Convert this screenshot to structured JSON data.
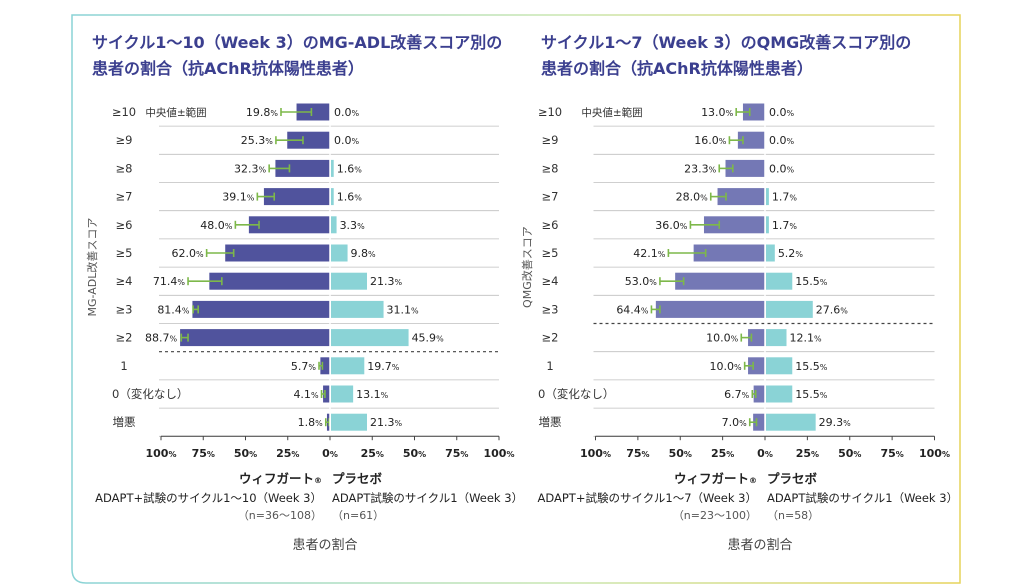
{
  "colors": {
    "treatment": "#50539d",
    "treatment_qmg": "#7478b5",
    "placebo": "#8ad3d6",
    "error_bar": "#7db84a",
    "title": "#3b3f8f",
    "text": "#333333",
    "border_left": "#8ad3d6",
    "border_right": "#e6d35a"
  },
  "chart_data": [
    {
      "type": "bar",
      "title_lines": [
        "サイクル1〜10（Week 3）のMG-ADL改善スコア別の",
        "患者の割合（抗AChR抗体陽性患者）"
      ],
      "ylabel": "MG-ADL改善スコア",
      "errorbar_legend": "中央値±範囲",
      "categories": [
        "≥10",
        "≥9",
        "≥8",
        "≥7",
        "≥6",
        "≥5",
        "≥4",
        "≥3",
        "≥2",
        "1",
        "0（変化なし）",
        "増悪"
      ],
      "dashed_after_index": 8,
      "series": [
        {
          "name": "ウィフガート®",
          "values": [
            19.8,
            25.3,
            32.3,
            39.1,
            48.0,
            62.0,
            71.4,
            81.4,
            88.7,
            5.7,
            4.1,
            1.8
          ],
          "labels": [
            "19.8%",
            "25.3%",
            "32.3%",
            "39.1%",
            "48.0%",
            "62.0%",
            "71.4%",
            "81.4%",
            "88.7%",
            "5.7%",
            "4.1%",
            "1.8%"
          ],
          "error_min": [
            11,
            16,
            24,
            33,
            42,
            57,
            64,
            78,
            84,
            4.5,
            3,
            0.5
          ],
          "error_max": [
            29,
            32,
            36,
            43,
            56,
            73,
            84,
            81,
            88,
            6.5,
            5,
            2.5
          ],
          "subtitle": "ADAPT+試験のサイクル1〜10（Week 3）",
          "n": "（n=36〜108）"
        },
        {
          "name": "プラセボ",
          "values": [
            0.0,
            0.0,
            1.6,
            1.6,
            3.3,
            9.8,
            21.3,
            31.1,
            45.9,
            19.7,
            13.1,
            21.3
          ],
          "labels": [
            "0.0%",
            "0.0%",
            "1.6%",
            "1.6%",
            "3.3%",
            "9.8%",
            "21.3%",
            "31.1%",
            "45.9%",
            "19.7%",
            "13.1%",
            "21.3%"
          ],
          "subtitle": "ADAPT試験のサイクル1（Week 3）",
          "n": "（n=61）"
        }
      ],
      "xticks": [
        "100%",
        "75%",
        "50%",
        "25%",
        "0%",
        "25%",
        "50%",
        "75%",
        "100%"
      ],
      "xlabel": "患者の割合",
      "xlim": [
        -100,
        100
      ]
    },
    {
      "type": "bar",
      "title_lines": [
        "サイクル1〜7（Week 3）のQMG改善スコア別の",
        "患者の割合（抗AChR抗体陽性患者）"
      ],
      "ylabel": "QMG改善スコア",
      "errorbar_legend": "中央値±範囲",
      "categories": [
        "≥10",
        "≥9",
        "≥8",
        "≥7",
        "≥6",
        "≥5",
        "≥4",
        "≥3",
        "≥2",
        "1",
        "0（変化なし）",
        "増悪"
      ],
      "dashed_after_index": 7,
      "series": [
        {
          "name": "ウィフガート®",
          "values": [
            13.0,
            16.0,
            23.3,
            28.0,
            36.0,
            42.1,
            53.0,
            64.4,
            10.0,
            10.0,
            6.7,
            7.0
          ],
          "labels": [
            "13.0%",
            "16.0%",
            "23.3%",
            "28.0%",
            "36.0%",
            "42.1%",
            "53.0%",
            "64.4%",
            "10.0%",
            "10.0%",
            "6.7%",
            "7.0%"
          ],
          "error_min": [
            9,
            13,
            19,
            23,
            27,
            35,
            48,
            62,
            8,
            7,
            5.5,
            5
          ],
          "error_max": [
            17,
            21,
            27,
            32,
            44,
            57,
            62,
            67,
            14,
            12,
            7.5,
            9
          ],
          "subtitle": "ADAPT+試験のサイクル1〜7（Week 3）",
          "n": "（n=23〜100）"
        },
        {
          "name": "プラセボ",
          "values": [
            0.0,
            0.0,
            0.0,
            1.7,
            1.7,
            5.2,
            15.5,
            27.6,
            12.1,
            15.5,
            15.5,
            29.3
          ],
          "labels": [
            "0.0%",
            "0.0%",
            "0.0%",
            "1.7%",
            "1.7%",
            "5.2%",
            "15.5%",
            "27.6%",
            "12.1%",
            "15.5%",
            "15.5%",
            "29.3%"
          ],
          "subtitle": "ADAPT試験のサイクル1（Week 3）",
          "n": "（n=58）"
        }
      ],
      "xticks": [
        "100%",
        "75%",
        "50%",
        "25%",
        "0%",
        "25%",
        "50%",
        "75%",
        "100%"
      ],
      "xlabel": "患者の割合",
      "xlim": [
        -100,
        100
      ]
    }
  ]
}
